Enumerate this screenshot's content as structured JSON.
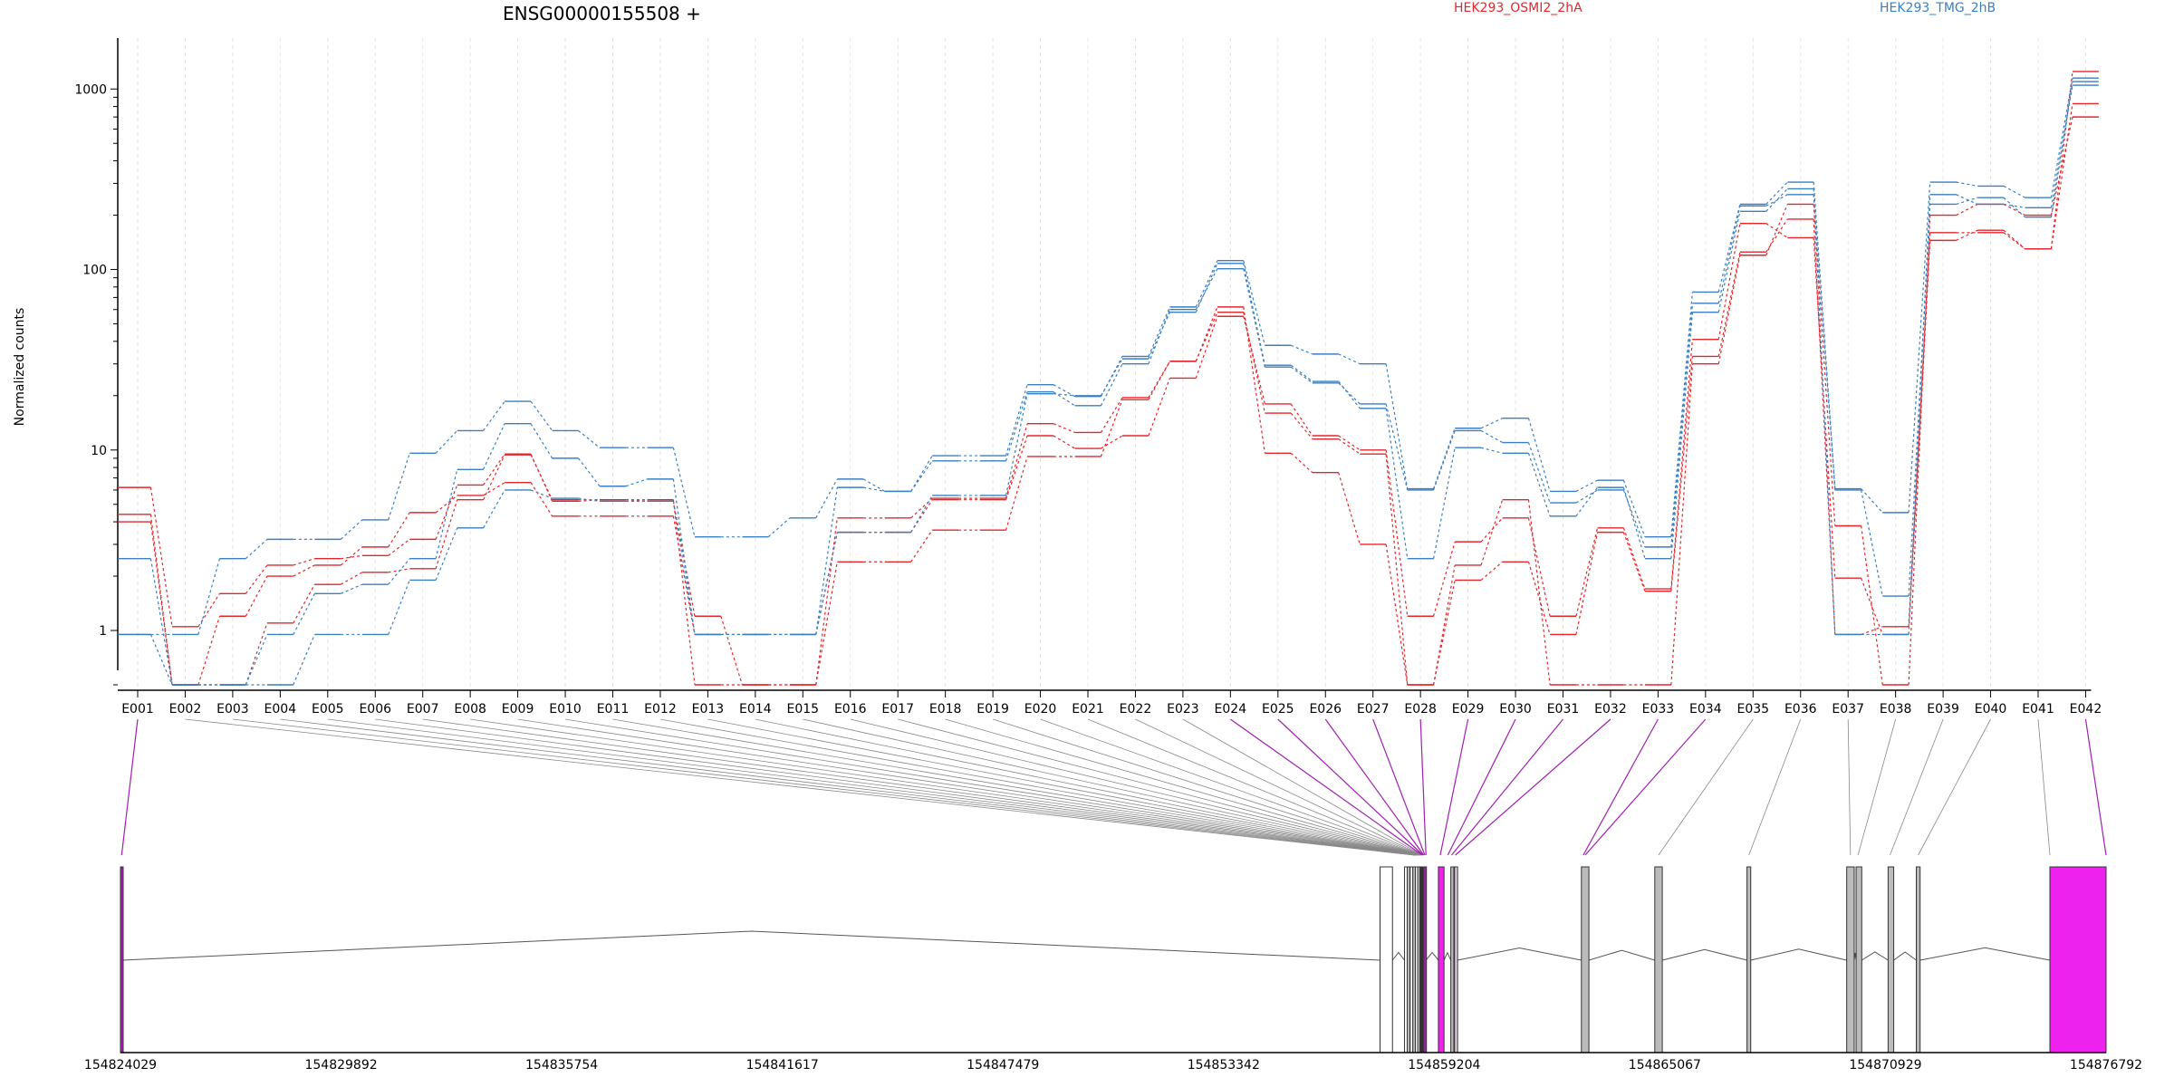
{
  "chart_data": {
    "type": "line",
    "title": "ENSG00000155508 +",
    "ylabel": "Normalized counts",
    "yscale": "log",
    "ylim": [
      0.5,
      1600
    ],
    "yticks": [
      1,
      10,
      100,
      1000
    ],
    "ytick_labels": [
      "1",
      "10",
      "100",
      "1000"
    ],
    "grid": "vertical dashed lines at exon positions",
    "legend": [
      {
        "name": "HEK293_OSMI2_2hA",
        "color": "#e3262b"
      },
      {
        "name": "HEK293_TMG_2hB",
        "color": "#3a7fc0"
      }
    ],
    "categories": [
      "E001",
      "E002",
      "E003",
      "E004",
      "E005",
      "E006",
      "E007",
      "E008",
      "E009",
      "E010",
      "E011",
      "E012",
      "E013",
      "E014",
      "E015",
      "E016",
      "E017",
      "E018",
      "E019",
      "E020",
      "E021",
      "E022",
      "E023",
      "E024",
      "E025",
      "E026",
      "E027",
      "E028",
      "E029",
      "E030",
      "E031",
      "E032",
      "E033",
      "E034",
      "E035",
      "E036",
      "E037",
      "E038",
      "E039",
      "E040",
      "E041",
      "E042"
    ],
    "series": [
      {
        "group": "HEK293_OSMI2_2hA",
        "color": "#e3262b",
        "values": [
          6.2,
          1.05,
          1.6,
          2.3,
          2.5,
          2.6,
          3.2,
          6.4,
          9.5,
          5.2,
          5.3,
          5.2,
          1.2,
          0.5,
          0.5,
          2.4,
          2.4,
          3.6,
          3.6,
          9.2,
          9.2,
          19,
          31,
          62,
          9.6,
          7.5,
          3.0,
          0.5,
          1.9,
          2.4,
          0.95,
          3.5,
          1.65,
          33,
          125,
          190,
          0.95,
          1.05,
          160,
          160,
          130,
          1250
        ]
      },
      {
        "group": "HEK293_OSMI2_2hA",
        "color": "#e3262b",
        "values": [
          4.4,
          0.5,
          1.2,
          2.0,
          2.3,
          2.9,
          4.5,
          5.6,
          6.6,
          4.3,
          4.3,
          4.3,
          0.95,
          0.95,
          0.95,
          3.5,
          3.5,
          5.3,
          5.3,
          12,
          10.2,
          12,
          25,
          55,
          18,
          12,
          10,
          1.2,
          3.1,
          4.2,
          1.2,
          3.7,
          1.7,
          41,
          180,
          150,
          1.95,
          0.95,
          145,
          165,
          130,
          830
        ]
      },
      {
        "group": "HEK293_OSMI2_2hA",
        "color": "#e3262b",
        "values": [
          4.0,
          0.5,
          0.5,
          1.1,
          1.8,
          2.1,
          2.2,
          5.3,
          9.4,
          5.3,
          5.3,
          5.3,
          0.5,
          0.5,
          0.5,
          4.2,
          4.2,
          5.4,
          5.4,
          14,
          12.5,
          19.5,
          31,
          58,
          16,
          11.5,
          9.5,
          0.5,
          2.3,
          5.3,
          0.5,
          0.5,
          0.5,
          30,
          120,
          230,
          3.8,
          0.5,
          200,
          230,
          200,
          700
        ]
      },
      {
        "group": "HEK293_TMG_2hB",
        "color": "#3a7fc0",
        "values": [
          0.95,
          0.95,
          2.5,
          3.2,
          3.2,
          4.1,
          9.6,
          12.8,
          18.6,
          12.8,
          10.3,
          10.3,
          3.3,
          3.3,
          4.2,
          6.9,
          5.9,
          9.3,
          9.3,
          23,
          19.8,
          33,
          62,
          112,
          38,
          34,
          30,
          6.1,
          13.2,
          15,
          5.9,
          6.8,
          3.3,
          75,
          230,
          305,
          6.1,
          4.5,
          305,
          290,
          250,
          1150
        ]
      },
      {
        "group": "HEK293_TMG_2hB",
        "color": "#3a7fc0",
        "values": [
          0.95,
          0.5,
          0.5,
          0.5,
          0.95,
          0.95,
          1.9,
          3.7,
          6.0,
          5.4,
          5.2,
          5.2,
          0.95,
          0.95,
          0.95,
          3.5,
          3.5,
          5.6,
          5.6,
          20.5,
          20,
          32,
          58,
          108,
          29.5,
          24,
          17,
          2.5,
          10.3,
          9.6,
          4.3,
          6.2,
          2.5,
          58,
          210,
          280,
          0.95,
          0.95,
          260,
          230,
          220,
          1050
        ]
      },
      {
        "group": "HEK293_TMG_2hB",
        "color": "#3a7fc0",
        "values": [
          2.5,
          0.5,
          0.5,
          0.95,
          1.6,
          1.8,
          2.5,
          7.8,
          14,
          9.0,
          6.3,
          6.9,
          0.95,
          0.95,
          0.95,
          6.2,
          5.9,
          8.7,
          8.7,
          21,
          17.6,
          30,
          60,
          101,
          28.8,
          23.5,
          18,
          6.0,
          12.8,
          11,
          5.1,
          6.0,
          2.9,
          65,
          225,
          260,
          6.0,
          1.55,
          230,
          250,
          195,
          1100
        ]
      }
    ]
  },
  "gene_model": {
    "coords": [
      "154824029",
      "154829892",
      "154835754",
      "154841617",
      "154847479",
      "154853342",
      "154859204",
      "154865067",
      "154870929",
      "154876792"
    ],
    "range": [
      154824029,
      154876792
    ],
    "exons": [
      [
        154824029,
        154824090
      ],
      [
        154857500,
        154857830
      ],
      [
        154858150,
        154858200
      ],
      [
        154858220,
        154858270
      ],
      [
        154858300,
        154858350
      ],
      [
        154858370,
        154858420
      ],
      [
        154858440,
        154858480
      ],
      [
        154858500,
        154858540
      ],
      [
        154858560,
        154858640
      ],
      [
        154858660,
        154858720
      ],
      [
        154859050,
        154859200
      ],
      [
        154859380,
        154859460
      ],
      [
        154859480,
        154859560
      ],
      [
        154862850,
        154863050
      ],
      [
        154864800,
        154865000
      ],
      [
        154867250,
        154867350
      ],
      [
        154869900,
        154870100
      ],
      [
        154870150,
        154870300
      ],
      [
        154871000,
        154871150
      ],
      [
        154871750,
        154871850
      ],
      [
        154875300,
        154876792
      ]
    ],
    "exon_fill": [
      "#a81fb5",
      "#ffffff",
      "#ffffff",
      "#bbbbbb",
      "#ffffff",
      "#bbbbbb",
      "#ffffff",
      "#bbbbbb",
      "#333333",
      "#a81fb5",
      "#ee22ee",
      "#bbbbbb",
      "#ddd0dd",
      "#bbbbbb",
      "#bbbbbb",
      "#bbbbbb",
      "#bbbbbb",
      "#bbbbbb",
      "#bbbbbb",
      "#bbbbbb",
      "#ee22ee"
    ],
    "highlight_exons": [
      "E001",
      "E024",
      "E025",
      "E026",
      "E027",
      "E028",
      "E029",
      "E030",
      "E031",
      "E032",
      "E033",
      "E034",
      "E042"
    ],
    "connector_target_exon": [
      "E001",
      "E002",
      "E003",
      "E004",
      "E005",
      "E006",
      "E007",
      "E008",
      "E009",
      "E010",
      "E011",
      "E012",
      "E013",
      "E014",
      "E015",
      "E016",
      "E017",
      "E018",
      "E019",
      "E020",
      "E021",
      "E022",
      "E023",
      "E024",
      "E025",
      "E026",
      "E027",
      "E028",
      "E029",
      "E030",
      "E031",
      "E032",
      "E033",
      "E034",
      "E035",
      "E036",
      "E037",
      "E038",
      "E039",
      "E040",
      "E041",
      "E042"
    ],
    "connector_target_pos": [
      154824060,
      154858400,
      154858410,
      154858420,
      154858430,
      154858440,
      154858450,
      154858460,
      154858470,
      154858480,
      154858490,
      154858500,
      154858510,
      154858520,
      154858530,
      154858540,
      154858550,
      154858560,
      154858570,
      154858580,
      154858590,
      154858600,
      154858610,
      154858620,
      154858640,
      154858660,
      154858690,
      154858720,
      154859100,
      154859300,
      154859400,
      154859500,
      154862900,
      154862950,
      154864900,
      154867300,
      154870000,
      154870200,
      154871050,
      154871800,
      154875300,
      154876792
    ]
  },
  "colors": {
    "intron": "#555555",
    "connector_gray": "#888888",
    "connector_purple": "#a020b0",
    "grid": "#e4e4e4"
  }
}
